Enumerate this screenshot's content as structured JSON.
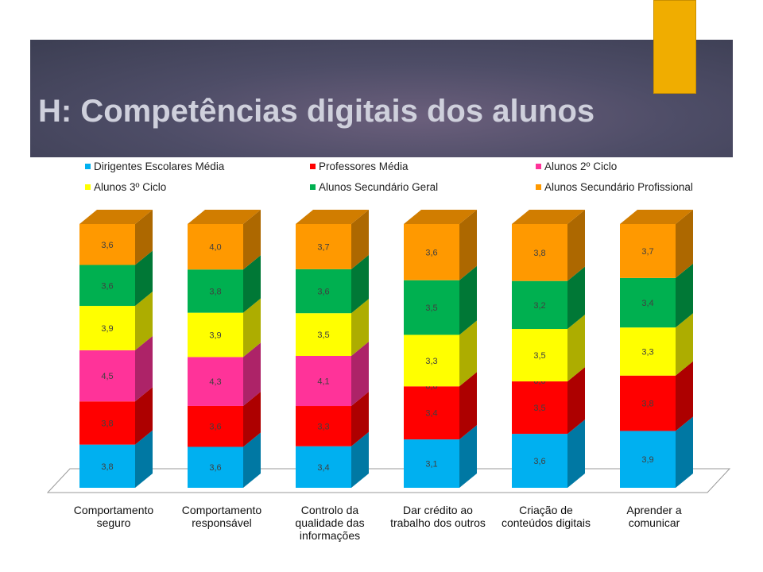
{
  "slide": {
    "title": "H: Competências digitais dos alunos"
  },
  "colors": {
    "banner": "#46475f",
    "accent": "#f0ad00"
  },
  "legend": [
    {
      "label": "Dirigentes Escolares Média",
      "color": "#00b0f0"
    },
    {
      "label": "Professores Média",
      "color": "#ff0000"
    },
    {
      "label": "Alunos 2º Ciclo",
      "color": "#ff3399"
    },
    {
      "label": "Alunos 3º Ciclo",
      "color": "#ffff00"
    },
    {
      "label": "Alunos Secundário Geral",
      "color": "#00b050"
    },
    {
      "label": "Alunos Secundário Profissional",
      "color": "#ff9900"
    }
  ],
  "chart_data": {
    "type": "bar",
    "stacked": true,
    "three_d": true,
    "legend_position": "top",
    "categories": [
      "Comportamento seguro",
      "Comportamento responsável",
      "Controlo da qualidade das informações",
      "Dar crédito ao trabalho dos outros",
      "Criação de conteúdos digitais",
      "Aprender a comunicar"
    ],
    "series": [
      {
        "name": "Dirigentes Escolares Média",
        "color": "#00b0f0",
        "values": [
          3.8,
          3.6,
          3.4,
          3.1,
          3.6,
          3.9
        ],
        "labels": [
          "3,8",
          "3,6",
          "3,4",
          "3,1",
          "3,6",
          "3,9"
        ]
      },
      {
        "name": "Professores Média",
        "color": "#ff0000",
        "values": [
          3.8,
          3.6,
          3.3,
          3.4,
          3.5,
          3.8
        ],
        "labels": [
          "3,8",
          "3,6",
          "3,3",
          "3,4",
          "3,5",
          "3,8"
        ]
      },
      {
        "name": "Alunos 2º Ciclo",
        "color": "#ff3399",
        "values": [
          4.5,
          4.3,
          4.1,
          0.0,
          0.0,
          null
        ],
        "labels": [
          "4,5",
          "4,3",
          "4,1",
          "0,0",
          "0,0",
          ""
        ]
      },
      {
        "name": "Alunos 3º Ciclo",
        "color": "#ffff00",
        "values": [
          3.9,
          3.9,
          3.5,
          3.3,
          3.5,
          3.3
        ],
        "labels": [
          "3,9",
          "3,9",
          "3,5",
          "3,3",
          "3,5",
          "3,3"
        ]
      },
      {
        "name": "Alunos Secundário Geral",
        "color": "#00b050",
        "values": [
          3.6,
          3.8,
          3.6,
          3.5,
          3.2,
          3.4
        ],
        "labels": [
          "3,6",
          "3,8",
          "3,6",
          "3,5",
          "3,2",
          "3,4"
        ]
      },
      {
        "name": "Alunos Secundário Profissional",
        "color": "#ff9900",
        "values": [
          3.6,
          4.0,
          3.7,
          3.6,
          3.8,
          3.7
        ],
        "labels": [
          "3,6",
          "4,0",
          "3,7",
          "3,6",
          "3,8",
          "3,7"
        ]
      }
    ]
  }
}
